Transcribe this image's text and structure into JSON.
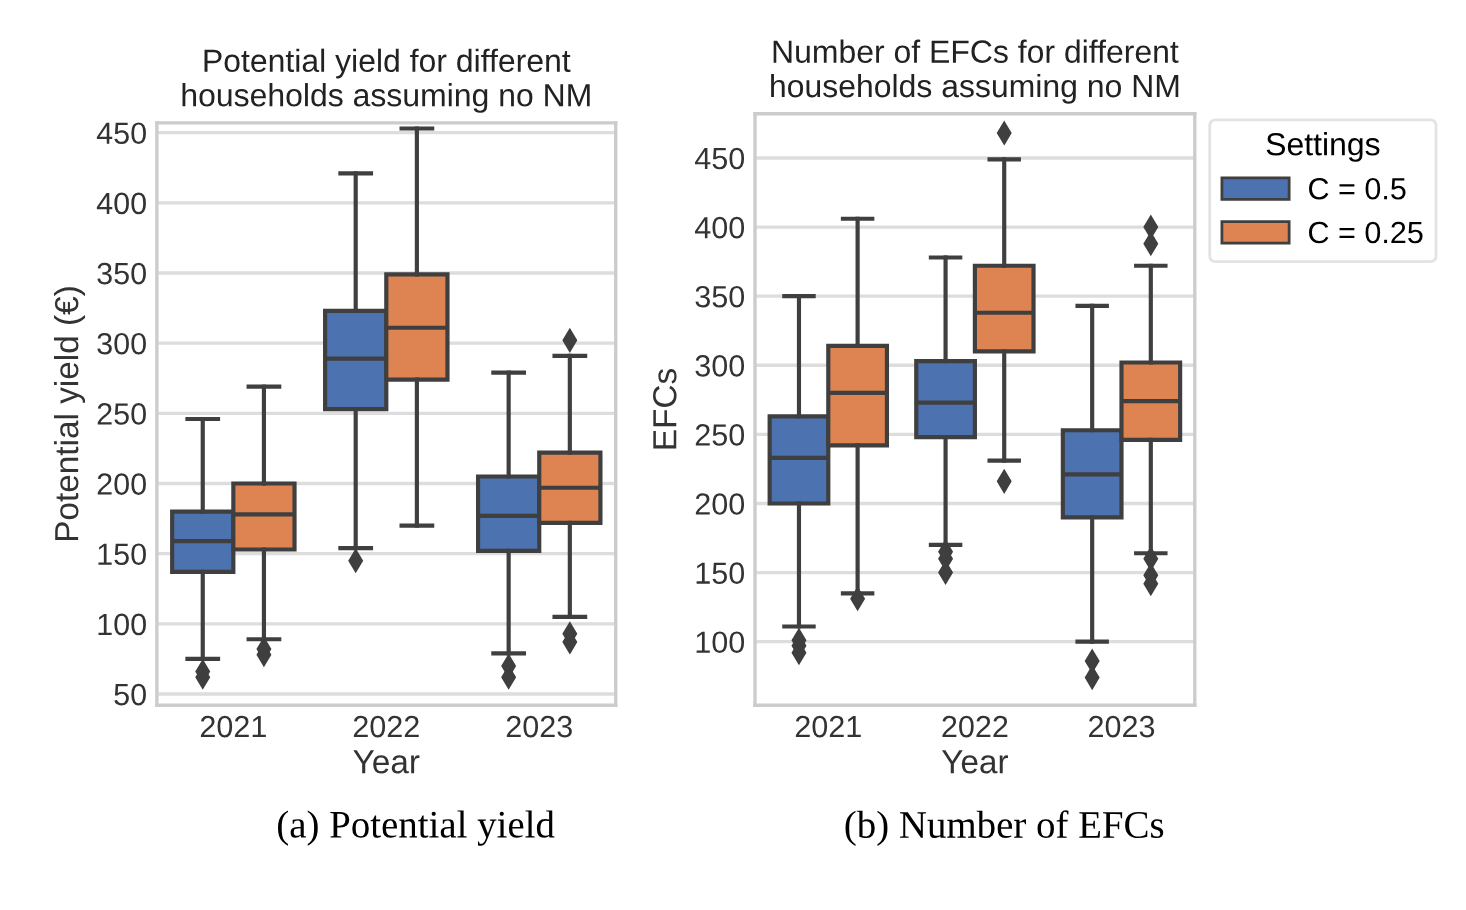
{
  "chart_data": [
    {
      "type": "box",
      "title": "Potential yield for different\nhouseholds assuming no NM",
      "xlabel": "Year",
      "ylabel": "Potential yield (€)",
      "categories": [
        "2021",
        "2022",
        "2023"
      ],
      "ylim": [
        42,
        457
      ],
      "yticks": [
        50,
        100,
        150,
        200,
        250,
        300,
        350,
        400,
        450
      ],
      "grid": "y",
      "legend": false,
      "annotations": [
        "(a) Potential yield"
      ],
      "series": [
        {
          "color": "#4c72b0",
          "boxes": [
            {
              "low": 75,
              "q1": 137,
              "median": 159,
              "q3": 180,
              "high": 246,
              "outliers": [
                62,
                66
              ]
            },
            {
              "low": 154,
              "q1": 253,
              "median": 289,
              "q3": 323,
              "high": 421,
              "outliers": [
                145
              ]
            },
            {
              "low": 79,
              "q1": 152,
              "median": 177,
              "q3": 205,
              "high": 279,
              "outliers": [
                62,
                70
              ]
            }
          ]
        },
        {
          "color": "#dd8452",
          "boxes": [
            {
              "low": 89,
              "q1": 153,
              "median": 178,
              "q3": 200,
              "high": 269,
              "outliers": [
                78,
                82
              ]
            },
            {
              "low": 170,
              "q1": 274,
              "median": 311,
              "q3": 349,
              "high": 453
            },
            {
              "low": 105,
              "q1": 172,
              "median": 197,
              "q3": 222,
              "high": 291,
              "outliers": [
                302,
                87,
                93
              ]
            }
          ]
        }
      ]
    },
    {
      "type": "box",
      "title": "Number of EFCs for different\nhouseholds assuming no NM",
      "xlabel": "Year",
      "ylabel": "EFCs",
      "legend_title": "Settings",
      "categories": [
        "2021",
        "2022",
        "2023"
      ],
      "ylim": [
        54,
        482
      ],
      "yticks": [
        100,
        150,
        200,
        250,
        300,
        350,
        400,
        450
      ],
      "grid": "y",
      "legend": "top right",
      "annotations": [
        "(b) Number of EFCs"
      ],
      "series": [
        {
          "name": "C = 0.5",
          "color": "#4c72b0",
          "boxes": [
            {
              "low": 111,
              "q1": 200,
              "median": 233,
              "q3": 263,
              "high": 350,
              "outliers": [
                92,
                97,
                101
              ]
            },
            {
              "low": 170,
              "q1": 248,
              "median": 273,
              "q3": 303,
              "high": 378,
              "outliers": [
                150,
                160,
                165
              ]
            },
            {
              "low": 100,
              "q1": 190,
              "median": 221,
              "q3": 253,
              "high": 343,
              "outliers": [
                74,
                86
              ]
            }
          ]
        },
        {
          "name": "C = 0.25",
          "color": "#dd8452",
          "boxes": [
            {
              "low": 135,
              "q1": 242,
              "median": 280,
              "q3": 314,
              "high": 406,
              "outliers": [
                131
              ]
            },
            {
              "low": 231,
              "q1": 310,
              "median": 338,
              "q3": 372,
              "high": 449,
              "outliers": [
                468,
                216
              ]
            },
            {
              "low": 164,
              "q1": 246,
              "median": 274,
              "q3": 302,
              "high": 372,
              "outliers": [
                388,
                400,
                142,
                148,
                160
              ]
            }
          ]
        }
      ]
    }
  ]
}
